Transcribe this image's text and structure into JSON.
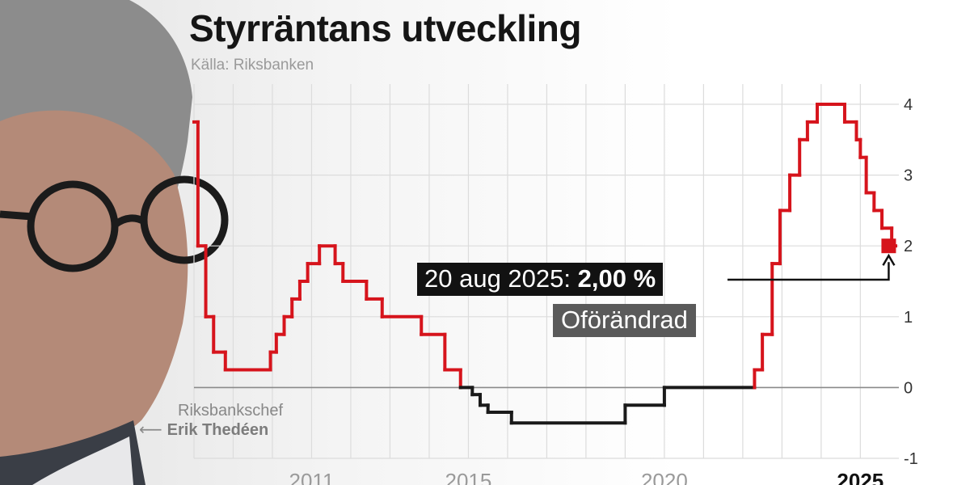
{
  "title": "Styrräntans utveckling",
  "source": "Källa: Riksbanken",
  "callout": {
    "date": "20 aug 2025: ",
    "value": "2,00 %",
    "status": "Oförändrad"
  },
  "person": {
    "role": "Riksbankschef",
    "name": "Erik Thedéen"
  },
  "colors": {
    "positive": "#d6141c",
    "negative": "#1a1a1a",
    "grid": "#dcdcdc",
    "callout_bg": "#121212",
    "badge_bg": "#5a5a5a"
  },
  "chart_data": {
    "type": "line",
    "step": true,
    "title": "Styrräntans utveckling",
    "subtitle": "Källa: Riksbanken",
    "xlabel": "",
    "ylabel": "",
    "xlim": [
      2008.0,
      2025.9
    ],
    "ylim": [
      -1,
      4
    ],
    "y_ticks": [
      4,
      3,
      2,
      1,
      0,
      -1
    ],
    "x_ticks": [
      {
        "value": 2011,
        "label": "2011",
        "bold": false
      },
      {
        "value": 2015,
        "label": "2015",
        "bold": false
      },
      {
        "value": 2020,
        "label": "2020",
        "bold": false
      },
      {
        "value": 2025,
        "label": "2025",
        "bold": true
      }
    ],
    "axis_side": "right",
    "grid": true,
    "color_rule": "red when rate > 0, black when rate <= 0",
    "series": [
      {
        "points": [
          [
            2008.0,
            3.75
          ],
          [
            2008.1,
            2.0
          ],
          [
            2008.3,
            1.0
          ],
          [
            2008.5,
            0.5
          ],
          [
            2008.8,
            0.25
          ],
          [
            2009.8,
            0.25
          ],
          [
            2009.95,
            0.5
          ],
          [
            2010.1,
            0.75
          ],
          [
            2010.3,
            1.0
          ],
          [
            2010.5,
            1.25
          ],
          [
            2010.7,
            1.5
          ],
          [
            2010.9,
            1.75
          ],
          [
            2011.2,
            2.0
          ],
          [
            2011.6,
            1.75
          ],
          [
            2011.8,
            1.5
          ],
          [
            2012.4,
            1.25
          ],
          [
            2012.8,
            1.0
          ],
          [
            2013.8,
            0.75
          ],
          [
            2014.4,
            0.25
          ],
          [
            2014.8,
            0.0
          ],
          [
            2015.1,
            -0.1
          ],
          [
            2015.3,
            -0.25
          ],
          [
            2015.5,
            -0.35
          ],
          [
            2016.1,
            -0.5
          ],
          [
            2019.0,
            -0.25
          ],
          [
            2020.0,
            0.0
          ],
          [
            2022.3,
            0.25
          ],
          [
            2022.5,
            0.75
          ],
          [
            2022.75,
            1.75
          ],
          [
            2022.95,
            2.5
          ],
          [
            2023.2,
            3.0
          ],
          [
            2023.45,
            3.5
          ],
          [
            2023.65,
            3.75
          ],
          [
            2023.9,
            4.0
          ],
          [
            2024.6,
            3.75
          ],
          [
            2024.9,
            3.5
          ],
          [
            2025.0,
            3.25
          ],
          [
            2025.15,
            2.75
          ],
          [
            2025.35,
            2.5
          ],
          [
            2025.55,
            2.25
          ],
          [
            2025.8,
            2.0
          ],
          [
            2025.9,
            2.0
          ]
        ]
      }
    ],
    "annotation": {
      "x": 2025.62,
      "y": 2.0,
      "text": "20 aug 2025: 2,00 %"
    }
  }
}
